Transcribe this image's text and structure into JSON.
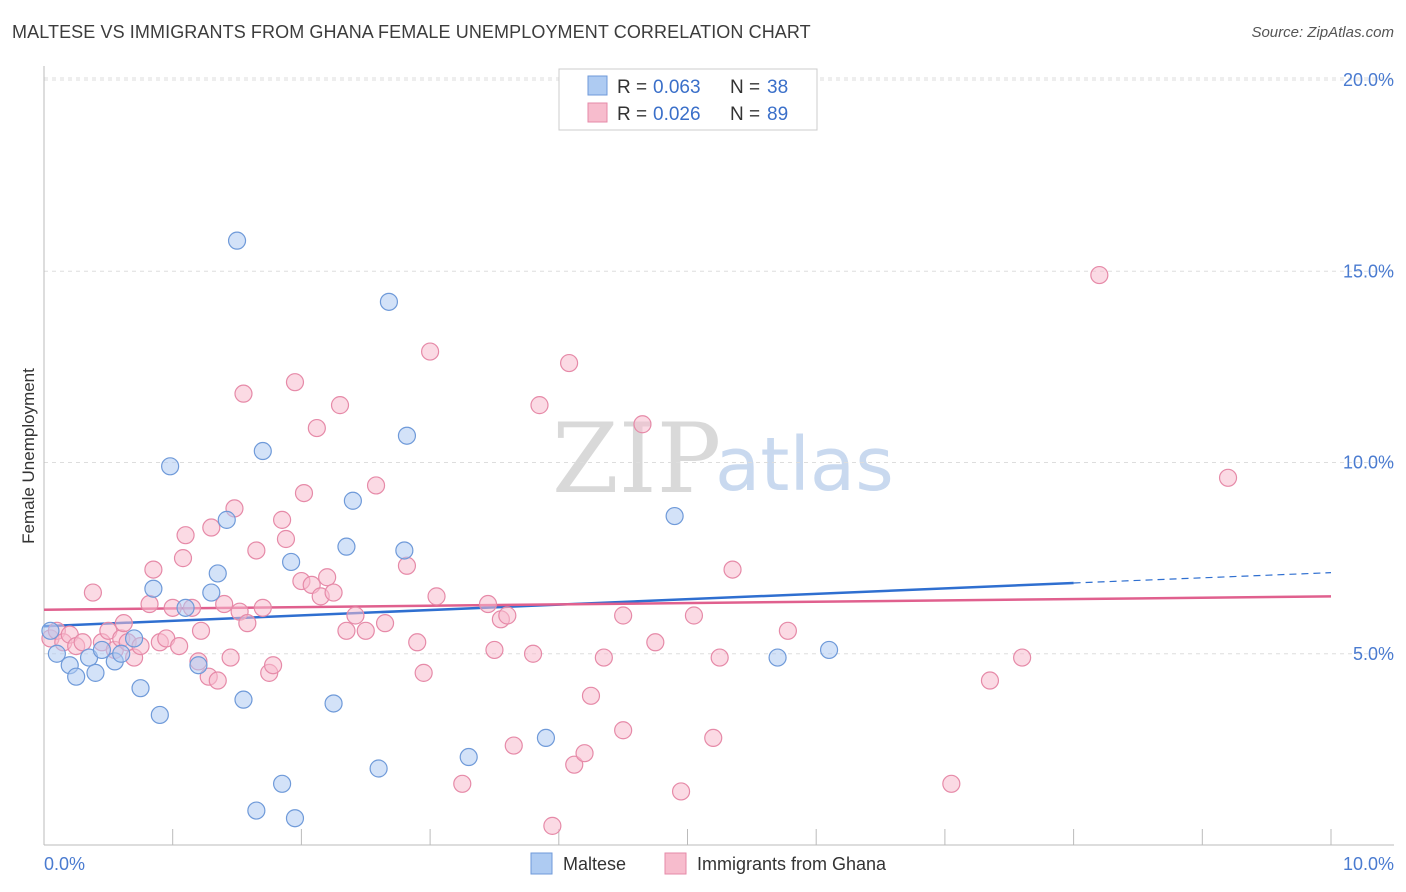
{
  "chart_data": {
    "type": "scatter",
    "title": "MALTESE VS IMMIGRANTS FROM GHANA FEMALE UNEMPLOYMENT CORRELATION CHART",
    "source": "Source: ZipAtlas.com",
    "ylabel": "Female Unemployment",
    "xlim": [
      0,
      10
    ],
    "ylim": [
      0,
      20
    ],
    "x_tick_labels": [
      "0.0%",
      "10.0%"
    ],
    "y_ticks": [
      5,
      10,
      15,
      20
    ],
    "y_tick_labels": [
      "5.0%",
      "10.0%",
      "15.0%",
      "20.0%"
    ],
    "watermark": [
      "ZIP",
      "atlas"
    ],
    "legend": [
      {
        "r_label": "R = ",
        "r": "0.063",
        "n_label": "N = ",
        "n": "38"
      },
      {
        "r_label": "R = ",
        "r": "0.026",
        "n_label": "N = ",
        "n": "89"
      }
    ],
    "series": [
      {
        "name": "Maltese",
        "fill": "#aecbf2",
        "stroke": "#6f9ad9",
        "line_color": "#2f6fd0",
        "trend": {
          "x0": 0.0,
          "y0": 5.72,
          "x1": 8.0,
          "y1": 6.85,
          "x_dash_end": 10.0,
          "y_dash_end": 7.12
        },
        "points": [
          [
            0.05,
            5.6
          ],
          [
            0.1,
            5.0
          ],
          [
            0.2,
            4.7
          ],
          [
            0.25,
            4.4
          ],
          [
            0.35,
            4.9
          ],
          [
            0.4,
            4.5
          ],
          [
            0.45,
            5.1
          ],
          [
            0.55,
            4.8
          ],
          [
            0.6,
            5.0
          ],
          [
            0.7,
            5.4
          ],
          [
            0.75,
            4.1
          ],
          [
            0.85,
            6.7
          ],
          [
            0.9,
            3.4
          ],
          [
            0.98,
            9.9
          ],
          [
            1.1,
            6.2
          ],
          [
            1.2,
            4.7
          ],
          [
            1.3,
            6.6
          ],
          [
            1.35,
            7.1
          ],
          [
            1.42,
            8.5
          ],
          [
            1.5,
            15.8
          ],
          [
            1.55,
            3.8
          ],
          [
            1.65,
            0.9
          ],
          [
            1.7,
            10.3
          ],
          [
            1.85,
            1.6
          ],
          [
            1.92,
            7.4
          ],
          [
            1.95,
            0.7
          ],
          [
            2.25,
            3.7
          ],
          [
            2.35,
            7.8
          ],
          [
            2.4,
            9.0
          ],
          [
            2.6,
            2.0
          ],
          [
            2.68,
            14.2
          ],
          [
            2.8,
            7.7
          ],
          [
            2.82,
            10.7
          ],
          [
            3.3,
            2.3
          ],
          [
            3.9,
            2.8
          ],
          [
            4.9,
            8.6
          ],
          [
            5.7,
            4.9
          ],
          [
            6.1,
            5.1
          ]
        ]
      },
      {
        "name": "Immigrants from Ghana",
        "fill": "#f7bccd",
        "stroke": "#e68aa8",
        "line_color": "#e0608e",
        "trend": {
          "x0": 0.0,
          "y0": 6.15,
          "x1": 10.0,
          "y1": 6.5
        },
        "points": [
          [
            0.05,
            5.4
          ],
          [
            0.1,
            5.6
          ],
          [
            0.15,
            5.3
          ],
          [
            0.2,
            5.5
          ],
          [
            0.25,
            5.2
          ],
          [
            0.3,
            5.3
          ],
          [
            0.38,
            6.6
          ],
          [
            0.45,
            5.3
          ],
          [
            0.5,
            5.6
          ],
          [
            0.55,
            5.1
          ],
          [
            0.6,
            5.4
          ],
          [
            0.62,
            5.8
          ],
          [
            0.65,
            5.3
          ],
          [
            0.7,
            4.9
          ],
          [
            0.75,
            5.2
          ],
          [
            0.82,
            6.3
          ],
          [
            0.85,
            7.2
          ],
          [
            0.9,
            5.3
          ],
          [
            0.95,
            5.4
          ],
          [
            1.0,
            6.2
          ],
          [
            1.05,
            5.2
          ],
          [
            1.08,
            7.5
          ],
          [
            1.1,
            8.1
          ],
          [
            1.15,
            6.2
          ],
          [
            1.2,
            4.8
          ],
          [
            1.22,
            5.6
          ],
          [
            1.28,
            4.4
          ],
          [
            1.3,
            8.3
          ],
          [
            1.35,
            4.3
          ],
          [
            1.4,
            6.3
          ],
          [
            1.45,
            4.9
          ],
          [
            1.48,
            8.8
          ],
          [
            1.52,
            6.1
          ],
          [
            1.55,
            11.8
          ],
          [
            1.58,
            5.8
          ],
          [
            1.65,
            7.7
          ],
          [
            1.7,
            6.2
          ],
          [
            1.75,
            4.5
          ],
          [
            1.78,
            4.7
          ],
          [
            1.85,
            8.5
          ],
          [
            1.88,
            8.0
          ],
          [
            1.95,
            12.1
          ],
          [
            2.0,
            6.9
          ],
          [
            2.02,
            9.2
          ],
          [
            2.08,
            6.8
          ],
          [
            2.12,
            10.9
          ],
          [
            2.15,
            6.5
          ],
          [
            2.2,
            7.0
          ],
          [
            2.25,
            6.6
          ],
          [
            2.3,
            11.5
          ],
          [
            2.35,
            5.6
          ],
          [
            2.42,
            6.0
          ],
          [
            2.5,
            5.6
          ],
          [
            2.58,
            9.4
          ],
          [
            2.65,
            5.8
          ],
          [
            2.82,
            7.3
          ],
          [
            2.9,
            5.3
          ],
          [
            2.95,
            4.5
          ],
          [
            3.0,
            12.9
          ],
          [
            3.05,
            6.5
          ],
          [
            3.25,
            1.6
          ],
          [
            3.45,
            6.3
          ],
          [
            3.5,
            5.1
          ],
          [
            3.55,
            5.9
          ],
          [
            3.6,
            6.0
          ],
          [
            3.65,
            2.6
          ],
          [
            3.85,
            11.5
          ],
          [
            3.8,
            5.0
          ],
          [
            3.95,
            0.5
          ],
          [
            4.08,
            12.6
          ],
          [
            4.12,
            2.1
          ],
          [
            4.2,
            2.4
          ],
          [
            4.25,
            3.9
          ],
          [
            4.35,
            4.9
          ],
          [
            4.5,
            3.0
          ],
          [
            4.5,
            6.0
          ],
          [
            4.65,
            11.0
          ],
          [
            4.75,
            5.3
          ],
          [
            4.95,
            1.4
          ],
          [
            5.05,
            6.0
          ],
          [
            5.2,
            2.8
          ],
          [
            5.25,
            4.9
          ],
          [
            5.35,
            7.2
          ],
          [
            5.78,
            5.6
          ],
          [
            7.05,
            1.6
          ],
          [
            7.35,
            4.3
          ],
          [
            7.6,
            4.9
          ],
          [
            8.2,
            14.9
          ],
          [
            9.2,
            9.6
          ]
        ]
      }
    ]
  }
}
